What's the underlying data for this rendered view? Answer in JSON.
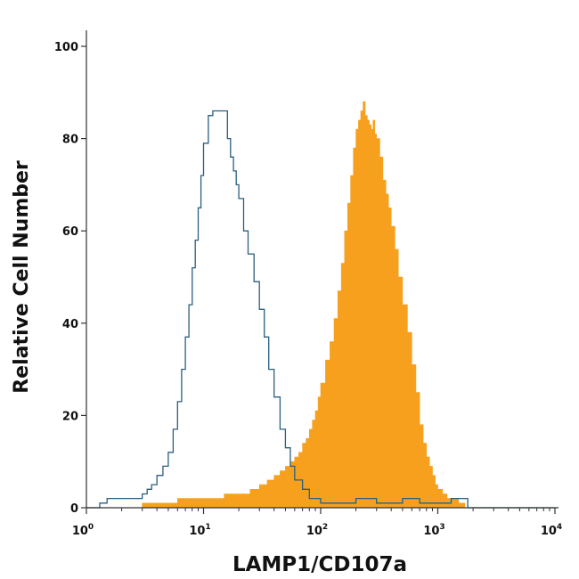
{
  "chart_data": {
    "type": "area",
    "xlabel": "LAMP1/CD107a",
    "ylabel": "Relative Cell Number",
    "x_scale": "log",
    "xlim": [
      1,
      10000
    ],
    "ylim": [
      0,
      100
    ],
    "x_ticks": [
      {
        "value": 1,
        "base": "10",
        "exp": "0"
      },
      {
        "value": 10,
        "base": "10",
        "exp": "1"
      },
      {
        "value": 100,
        "base": "10",
        "exp": "2"
      },
      {
        "value": 1000,
        "base": "10",
        "exp": "3"
      },
      {
        "value": 10000,
        "base": "10",
        "exp": "4"
      }
    ],
    "y_ticks": [
      "0",
      "20",
      "40",
      "60",
      "80",
      "100"
    ],
    "grid": false,
    "series": [
      {
        "style": "outline",
        "color": "#2b5f7e",
        "x": [
          1.0,
          1.3,
          1.5,
          2.0,
          2.7,
          3.0,
          3.3,
          3.6,
          4.0,
          4.5,
          5.0,
          5.5,
          6.0,
          6.5,
          7.0,
          7.5,
          8.0,
          8.5,
          9.0,
          9.5,
          10.0,
          11.0,
          12.0,
          13.0,
          14.0,
          15.0,
          16.0,
          17.0,
          18.0,
          19.0,
          20.0,
          22.0,
          24.0,
          27.0,
          30.0,
          33.0,
          36.0,
          40.0,
          45.0,
          50.0,
          55.0,
          60.0,
          70.0,
          80.0,
          100.0,
          150.0,
          200.0,
          300.0,
          500.0,
          700.0,
          1000.0,
          1300.0,
          1700.0,
          1800.0,
          10000.0
        ],
        "values": [
          0,
          1,
          2,
          2,
          2,
          3,
          4,
          5,
          7,
          9,
          12,
          17,
          23,
          30,
          37,
          44,
          52,
          58,
          65,
          72,
          79,
          85,
          86,
          86,
          86,
          86,
          80,
          76,
          73,
          70,
          67,
          60,
          55,
          49,
          43,
          37,
          30,
          24,
          17,
          13,
          9,
          6,
          4,
          2,
          1,
          1,
          2,
          1,
          2,
          1,
          1,
          2,
          2,
          0,
          0
        ]
      },
      {
        "style": "filled",
        "color": "#f6a01e",
        "x": [
          1.0,
          1.5,
          3.0,
          4.5,
          6.0,
          8.0,
          10.0,
          15.0,
          20.0,
          25.0,
          30.0,
          35.0,
          40.0,
          45.0,
          50.0,
          55.0,
          60.0,
          65.0,
          70.0,
          75.0,
          80.0,
          85.0,
          90.0,
          95.0,
          100.0,
          110.0,
          120.0,
          130.0,
          140.0,
          150.0,
          160.0,
          170.0,
          180.0,
          190.0,
          200.0,
          210.0,
          220.0,
          230.0,
          240.0,
          250.0,
          260.0,
          270.0,
          280.0,
          290.0,
          300.0,
          320.0,
          340.0,
          360.0,
          380.0,
          400.0,
          430.0,
          460.0,
          500.0,
          550.0,
          600.0,
          650.0,
          700.0,
          750.0,
          800.0,
          850.0,
          900.0,
          950.0,
          1000.0,
          1100.0,
          1200.0,
          1300.0,
          1400.0,
          1500.0,
          1600.0,
          1700.0,
          10000.0
        ],
        "values": [
          0,
          0,
          1,
          1,
          2,
          2,
          2,
          3,
          3,
          4,
          5,
          6,
          7,
          8,
          9,
          10,
          11,
          12,
          14,
          15,
          17,
          19,
          21,
          24,
          27,
          32,
          36,
          41,
          47,
          53,
          60,
          66,
          72,
          78,
          82,
          84,
          86,
          88,
          85,
          84,
          83,
          82,
          84,
          81,
          80,
          76,
          71,
          68,
          65,
          61,
          56,
          50,
          44,
          38,
          31,
          25,
          18,
          14,
          11,
          9,
          7,
          5,
          4,
          3,
          2,
          2,
          2,
          1,
          1,
          0,
          0
        ]
      }
    ]
  }
}
